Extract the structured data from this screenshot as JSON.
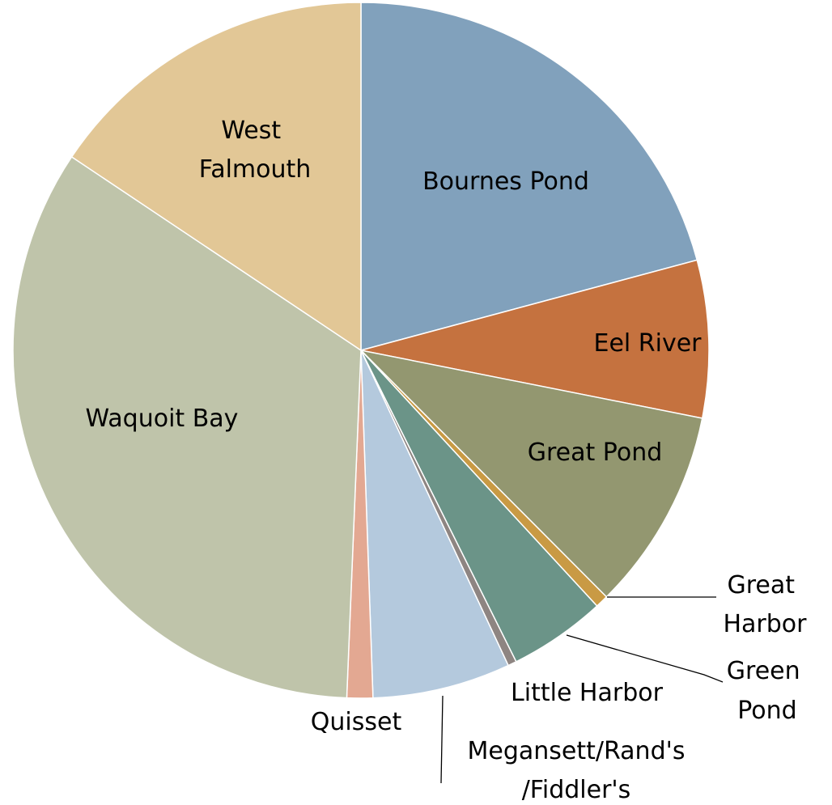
{
  "chart_data": {
    "type": "pie",
    "categories": [
      "Bournes Pond",
      "Eel River",
      "Great Pond",
      "Great Harbor",
      "Green Pond",
      "Little Harbor",
      "Megansett/Rand's/Fiddler's",
      "Quisset",
      "Waquoit Bay",
      "West Falmouth"
    ],
    "values": [
      20.8,
      7.3,
      9.4,
      0.6,
      4.5,
      0.4,
      6.4,
      1.2,
      33.7,
      15.6
    ],
    "colors": [
      "#81a1bc",
      "#c5723f",
      "#939770",
      "#c99a44",
      "#6b9488",
      "#8e8582",
      "#b4c9dd",
      "#e3a892",
      "#bfc4aa",
      "#e2c796"
    ]
  }
}
